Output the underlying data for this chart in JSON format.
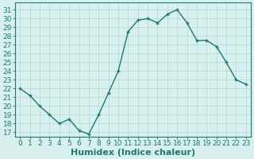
{
  "x": [
    0,
    1,
    2,
    3,
    4,
    5,
    6,
    7,
    8,
    9,
    10,
    11,
    12,
    13,
    14,
    15,
    16,
    17,
    18,
    19,
    20,
    21,
    22,
    23
  ],
  "y": [
    22,
    21.2,
    20,
    19,
    18,
    18.5,
    17.2,
    16.8,
    19,
    21.5,
    24.0,
    28.5,
    29.8,
    30.0,
    29.5,
    30.5,
    31.0,
    29.5,
    27.5,
    27.5,
    26.8,
    25.0,
    23.0,
    22.5
  ],
  "line_color": "#1d7a6e",
  "marker_color": "#1d7a6e",
  "bg_color": "#d8f0ee",
  "grid_color": "#b8dcd8",
  "xlabel": "Humidex (Indice chaleur)",
  "ylabel_ticks": [
    17,
    18,
    19,
    20,
    21,
    22,
    23,
    24,
    25,
    26,
    27,
    28,
    29,
    30,
    31
  ],
  "ylim": [
    16.5,
    31.8
  ],
  "xlim": [
    -0.5,
    23.5
  ],
  "xtick_labels": [
    "0",
    "1",
    "2",
    "3",
    "4",
    "5",
    "6",
    "7",
    "8",
    "9",
    "10",
    "11",
    "12",
    "13",
    "14",
    "15",
    "16",
    "17",
    "18",
    "19",
    "20",
    "21",
    "22",
    "23"
  ],
  "title_color": "#1d7a6e",
  "xlabel_color": "#1d7a6e",
  "xlabel_fontsize": 8,
  "tick_fontsize": 6.5,
  "linewidth": 1.0,
  "markersize": 3.5,
  "markeredgewidth": 1.0
}
